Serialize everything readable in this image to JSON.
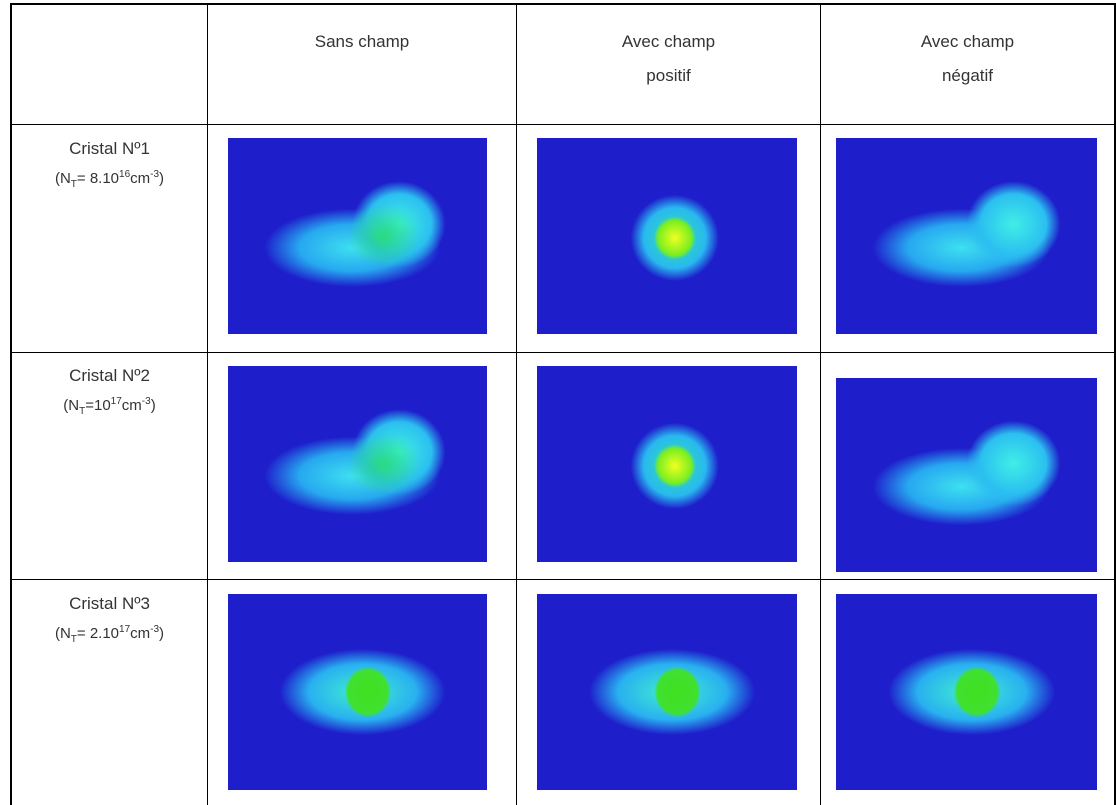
{
  "table": {
    "header": [
      [
        "Sans champ"
      ],
      [
        "Avec champ",
        "positif"
      ],
      [
        "Avec champ",
        "négatif"
      ]
    ],
    "rows": [
      {
        "label": "Cristal Nº1",
        "formula": [
          {
            "text": "(N"
          },
          {
            "sub": "T"
          },
          {
            "text": "= 8.10"
          },
          {
            "sup": "16"
          },
          {
            "text": "cm"
          },
          {
            "sup": "-3"
          },
          {
            "text": ")"
          }
        ]
      },
      {
        "label": "Cristal Nº2",
        "formula": [
          {
            "text": "(N"
          },
          {
            "sub": "T"
          },
          {
            "text": "=10"
          },
          {
            "sup": "17"
          },
          {
            "text": "cm"
          },
          {
            "sup": "-3"
          },
          {
            "text": ")"
          }
        ]
      },
      {
        "label": "Cristal Nº3",
        "formula": [
          {
            "text": "(N"
          },
          {
            "sub": "T"
          },
          {
            "text": "= 2.10"
          },
          {
            "sup": "17"
          },
          {
            "text": "cm"
          },
          {
            "sup": "-3"
          },
          {
            "text": ")"
          }
        ]
      }
    ]
  }
}
